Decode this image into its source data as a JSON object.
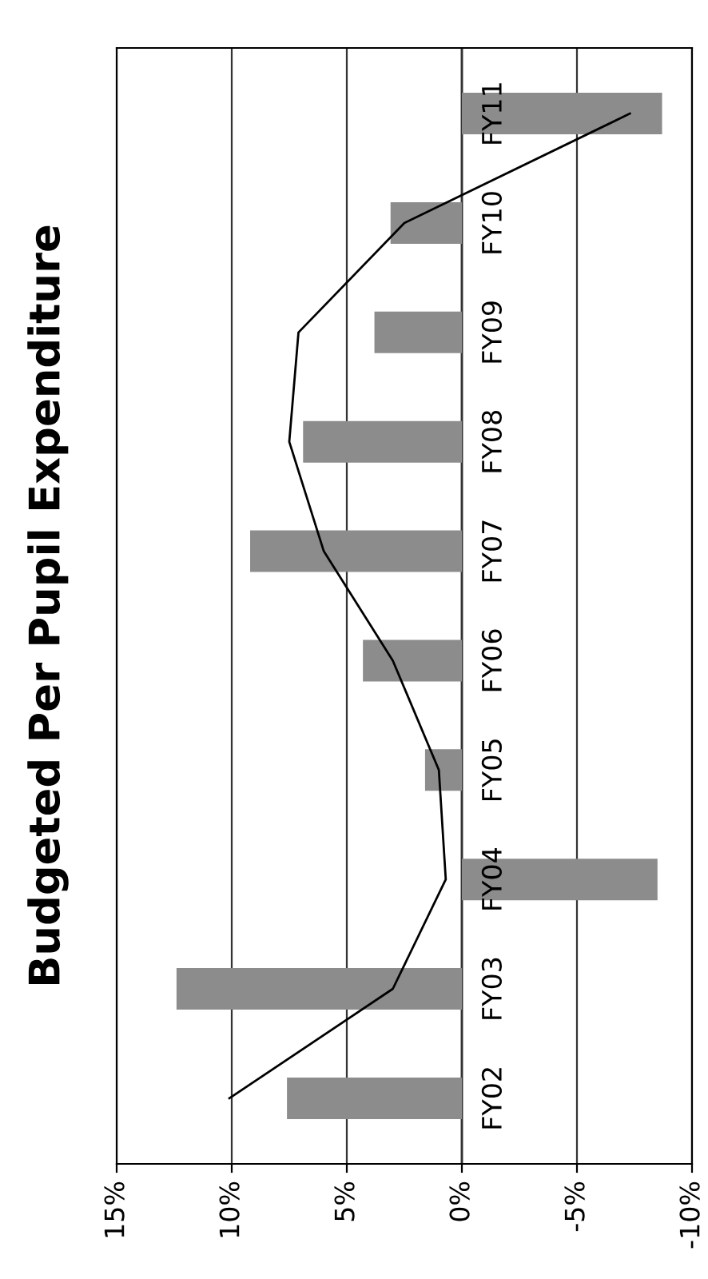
{
  "chart_data": {
    "type": "bar",
    "orientation": "horizontal",
    "title": "Budgeted Per Pupil Expenditure",
    "categories": [
      "FY11",
      "FY10",
      "FY09",
      "FY08",
      "FY07",
      "FY06",
      "FY05",
      "FY04",
      "FY03",
      "FY02"
    ],
    "series": [
      {
        "color": "#8c8c8c",
        "values": [
          -8.7,
          3.1,
          3.8,
          6.9,
          9.2,
          4.3,
          1.6,
          -8.5,
          12.4,
          7.6
        ]
      },
      {
        "type": "line",
        "color": "#000000",
        "values": [
          -7.3,
          2.5,
          7.1,
          7.5,
          6.0,
          3.0,
          1.0,
          0.7,
          3.0,
          10.1
        ]
      }
    ],
    "xlim": [
      15,
      -10
    ],
    "xticks": [
      {
        "value": 15,
        "label": "15%"
      },
      {
        "value": 10,
        "label": "10%"
      },
      {
        "value": 5,
        "label": "5%"
      },
      {
        "value": 0,
        "label": "0%"
      },
      {
        "value": -5,
        "label": "-5%"
      },
      {
        "value": -10,
        "label": "-10%"
      }
    ],
    "grid": "x",
    "legend": false,
    "marker": "none",
    "line_style": "solid"
  }
}
